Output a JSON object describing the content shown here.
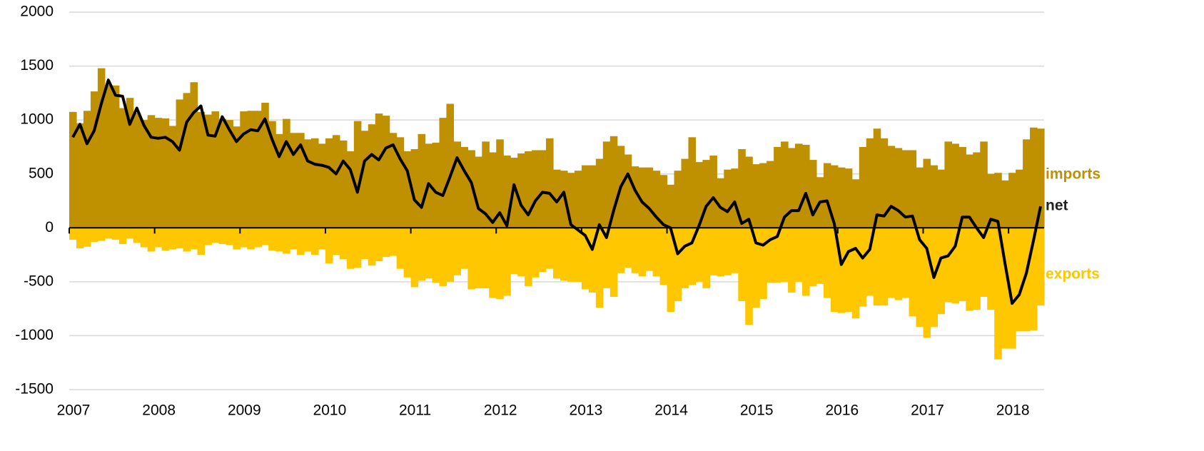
{
  "chart_data": {
    "type": "bar",
    "categories": [
      "2007",
      null,
      null,
      null,
      null,
      null,
      null,
      null,
      null,
      null,
      null,
      null,
      "2008",
      null,
      null,
      null,
      null,
      null,
      null,
      null,
      null,
      null,
      null,
      null,
      "2009",
      null,
      null,
      null,
      null,
      null,
      null,
      null,
      null,
      null,
      null,
      null,
      "2010",
      null,
      null,
      null,
      null,
      null,
      null,
      null,
      null,
      null,
      null,
      null,
      "2011",
      null,
      null,
      null,
      null,
      null,
      null,
      null,
      null,
      null,
      null,
      null,
      "2012",
      null,
      null,
      null,
      null,
      null,
      null,
      null,
      null,
      null,
      null,
      null,
      "2013",
      null,
      null,
      null,
      null,
      null,
      null,
      null,
      null,
      null,
      null,
      null,
      "2014",
      null,
      null,
      null,
      null,
      null,
      null,
      null,
      null,
      null,
      null,
      null,
      "2015",
      null,
      null,
      null,
      null,
      null,
      null,
      null,
      null,
      null,
      null,
      null,
      "2016",
      null,
      null,
      null,
      null,
      null,
      null,
      null,
      null,
      null,
      null,
      null,
      "2017",
      null,
      null,
      null,
      null,
      null,
      null,
      null,
      null,
      null,
      null,
      null,
      "2018",
      null,
      null,
      null,
      null
    ],
    "series": [
      {
        "name": "imports",
        "color": "#bf9000",
        "values": [
          1075,
          970,
          1085,
          1265,
          1480,
          1325,
          1320,
          1110,
          1205,
          1065,
          1000,
          1045,
          1020,
          1015,
          945,
          1190,
          1250,
          1350,
          1075,
          1050,
          1080,
          1010,
          1000,
          940,
          1080,
          1085,
          1085,
          1160,
          990,
          870,
          1010,
          880,
          880,
          820,
          830,
          780,
          830,
          860,
          810,
          710,
          990,
          900,
          960,
          1060,
          1040,
          880,
          840,
          710,
          730,
          870,
          780,
          790,
          1020,
          1150,
          800,
          750,
          720,
          660,
          800,
          700,
          820,
          670,
          650,
          690,
          710,
          720,
          720,
          830,
          540,
          530,
          510,
          530,
          580,
          580,
          640,
          800,
          850,
          760,
          680,
          570,
          560,
          560,
          530,
          490,
          400,
          530,
          640,
          840,
          610,
          630,
          670,
          460,
          540,
          550,
          730,
          660,
          590,
          600,
          620,
          750,
          800,
          740,
          780,
          770,
          630,
          470,
          600,
          580,
          560,
          550,
          450,
          750,
          830,
          920,
          830,
          760,
          740,
          720,
          720,
          560,
          640,
          580,
          540,
          800,
          780,
          750,
          680,
          700,
          800,
          500,
          510,
          440,
          510,
          540,
          820,
          930,
          920
        ]
      },
      {
        "name": "exports",
        "color": "#ffc700",
        "values": [
          -110,
          -190,
          -175,
          -130,
          -120,
          -100,
          -110,
          -150,
          -100,
          -140,
          -180,
          -220,
          -180,
          -210,
          -200,
          -190,
          -220,
          -200,
          -250,
          -160,
          -140,
          -150,
          -160,
          -200,
          -180,
          -200,
          -180,
          -160,
          -210,
          -220,
          -240,
          -200,
          -250,
          -220,
          -250,
          -200,
          -330,
          -250,
          -290,
          -380,
          -370,
          -290,
          -350,
          -310,
          -270,
          -260,
          -380,
          -460,
          -550,
          -490,
          -470,
          -510,
          -540,
          -500,
          -440,
          -380,
          -570,
          -560,
          -560,
          -650,
          -660,
          -630,
          -430,
          -450,
          -540,
          -460,
          -410,
          -380,
          -470,
          -490,
          -500,
          -500,
          -570,
          -600,
          -740,
          -560,
          -640,
          -420,
          -370,
          -420,
          -450,
          -400,
          -450,
          -530,
          -780,
          -680,
          -560,
          -530,
          -500,
          -560,
          -440,
          -450,
          -440,
          -420,
          -680,
          -900,
          -740,
          -660,
          -510,
          -510,
          -500,
          -600,
          -500,
          -630,
          -540,
          -520,
          -650,
          -780,
          -790,
          -780,
          -840,
          -730,
          -630,
          -720,
          -720,
          -650,
          -670,
          -650,
          -820,
          -920,
          -1020,
          -920,
          -800,
          -690,
          -700,
          -680,
          -770,
          -760,
          -640,
          -760,
          -1220,
          -1120,
          -1120,
          -960,
          -960,
          -950,
          -720
        ]
      },
      {
        "name": "net",
        "color": "#000000",
        "type": "line",
        "values": [
          840,
          960,
          780,
          900,
          1150,
          1370,
          1230,
          1220,
          960,
          1110,
          950,
          840,
          830,
          840,
          800,
          720,
          980,
          1070,
          1130,
          860,
          850,
          1030,
          910,
          800,
          870,
          910,
          900,
          1010,
          820,
          660,
          800,
          680,
          770,
          620,
          590,
          580,
          560,
          500,
          620,
          540,
          330,
          620,
          680,
          630,
          740,
          770,
          640,
          530,
          260,
          190,
          410,
          330,
          300,
          470,
          650,
          530,
          420,
          180,
          130,
          50,
          140,
          20,
          400,
          210,
          120,
          250,
          330,
          320,
          240,
          330,
          30,
          -20,
          -70,
          -200,
          30,
          -90,
          160,
          380,
          500,
          350,
          240,
          180,
          100,
          30,
          0,
          -240,
          -170,
          -140,
          20,
          200,
          280,
          190,
          150,
          240,
          40,
          80,
          -140,
          -160,
          -110,
          -80,
          100,
          160,
          160,
          320,
          120,
          240,
          250,
          40,
          -340,
          -220,
          -190,
          -280,
          -200,
          120,
          110,
          200,
          160,
          100,
          110,
          -110,
          -190,
          -460,
          -280,
          -260,
          -170,
          100,
          100,
          0,
          -90,
          80,
          60,
          -330,
          -700,
          -620,
          -420,
          -120,
          200
        ]
      }
    ],
    "ylim": [
      -1500,
      2000
    ],
    "yticks": [
      -1500,
      -1000,
      -500,
      0,
      500,
      1000,
      1500,
      2000
    ],
    "grid": true
  }
}
